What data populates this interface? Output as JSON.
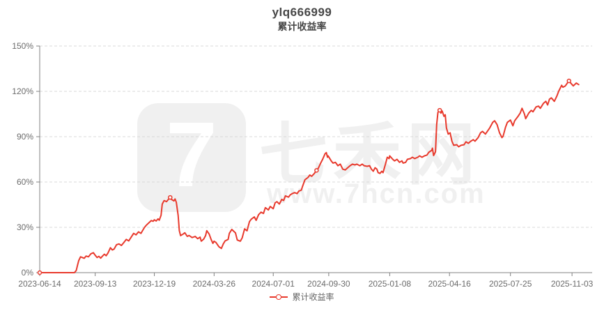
{
  "header": {
    "title": "ylq666999",
    "subtitle": "累计收益率"
  },
  "watermark": {
    "logo_glyph": "7",
    "site_name": "七禾网",
    "site_url": "www.7hcn.com"
  },
  "legend": {
    "items": [
      {
        "label": "累计收益率",
        "marker": "line-with-hollow-circle",
        "color": "#e8392c"
      }
    ]
  },
  "colors": {
    "line": "#e8392c",
    "axis_line": "#808080",
    "grid_line": "#d9d9d9",
    "axis_text": "#6b6b6b",
    "title_text": "#464646",
    "watermark": "#f0f0f0",
    "background": "#ffffff"
  },
  "chart_data": {
    "type": "line",
    "title": "ylq666999",
    "subtitle": "累计收益率",
    "series_name": "累计收益率",
    "legend_position": "bottom-center",
    "grid": "horizontal-dashed",
    "x_axis": {
      "kind": "date",
      "start_date": "2023-06-14",
      "axis_span_days": 906,
      "tick_days": [
        0,
        91,
        188,
        286,
        383,
        474,
        574,
        672,
        772,
        873
      ],
      "tick_labels": [
        "2023-06-14",
        "2023-09-13",
        "2023-12-19",
        "2024-03-26",
        "2024-07-01",
        "2024-09-30",
        "2025-01-08",
        "2025-04-16",
        "2025-07-25",
        "2025-11-03"
      ]
    },
    "y_axis": {
      "unit": "%",
      "min": 0,
      "max": 150,
      "tick_values": [
        0,
        30,
        60,
        90,
        120,
        150
      ],
      "tick_labels": [
        "0%",
        "30%",
        "60%",
        "90%",
        "120%",
        "150%"
      ]
    },
    "marker_days": [
      0,
      214,
      454,
      656,
      868
    ],
    "points": [
      [
        0,
        0
      ],
      [
        12,
        0
      ],
      [
        24,
        0
      ],
      [
        36,
        0
      ],
      [
        48,
        0
      ],
      [
        57,
        0
      ],
      [
        60,
        1.5
      ],
      [
        62,
        5
      ],
      [
        64,
        8
      ],
      [
        67,
        10.5
      ],
      [
        70,
        10
      ],
      [
        73,
        9.5
      ],
      [
        76,
        11
      ],
      [
        80,
        10.5
      ],
      [
        84,
        12.5
      ],
      [
        88,
        13.2
      ],
      [
        91,
        11.5
      ],
      [
        94,
        10
      ],
      [
        97,
        10.8
      ],
      [
        100,
        9.6
      ],
      [
        103,
        11
      ],
      [
        106,
        12.2
      ],
      [
        109,
        11.2
      ],
      [
        112,
        13
      ],
      [
        116,
        16.5
      ],
      [
        119,
        15
      ],
      [
        122,
        15.6
      ],
      [
        126,
        18.5
      ],
      [
        130,
        19
      ],
      [
        134,
        18
      ],
      [
        138,
        20
      ],
      [
        142,
        22
      ],
      [
        146,
        21
      ],
      [
        150,
        23.5
      ],
      [
        154,
        26
      ],
      [
        158,
        25
      ],
      [
        162,
        27
      ],
      [
        166,
        26
      ],
      [
        169,
        28
      ],
      [
        172,
        30
      ],
      [
        175,
        31.5
      ],
      [
        179,
        33
      ],
      [
        183,
        34.5
      ],
      [
        186,
        34
      ],
      [
        188,
        35
      ],
      [
        191,
        34.2
      ],
      [
        194,
        35.6
      ],
      [
        196,
        34.7
      ],
      [
        199,
        38
      ],
      [
        201,
        45.4
      ],
      [
        204,
        47.7
      ],
      [
        208,
        47
      ],
      [
        210,
        48
      ],
      [
        214,
        49.8
      ],
      [
        216,
        48.5
      ],
      [
        220,
        47.5
      ],
      [
        222,
        48.8
      ],
      [
        224,
        46.5
      ],
      [
        227,
        38
      ],
      [
        229,
        27.8
      ],
      [
        231,
        24.5
      ],
      [
        235,
        25.5
      ],
      [
        238,
        26.4
      ],
      [
        242,
        24
      ],
      [
        245,
        24.6
      ],
      [
        250,
        23.2
      ],
      [
        255,
        24
      ],
      [
        259,
        22.5
      ],
      [
        263,
        23.5
      ],
      [
        265,
        20.8
      ],
      [
        269,
        22.2
      ],
      [
        272,
        24.5
      ],
      [
        274,
        27.8
      ],
      [
        278,
        25.5
      ],
      [
        281,
        22
      ],
      [
        284,
        19.4
      ],
      [
        286,
        20.8
      ],
      [
        289,
        20
      ],
      [
        294,
        17.1
      ],
      [
        298,
        16
      ],
      [
        301,
        19
      ],
      [
        304,
        21
      ],
      [
        309,
        22
      ],
      [
        311,
        26
      ],
      [
        315,
        28.6
      ],
      [
        321,
        26.3
      ],
      [
        324,
        21.6
      ],
      [
        329,
        20.8
      ],
      [
        332,
        23
      ],
      [
        336,
        29
      ],
      [
        340,
        27.7
      ],
      [
        344,
        33.8
      ],
      [
        347,
        35.4
      ],
      [
        352,
        36.9
      ],
      [
        355,
        34.6
      ],
      [
        359,
        38.4
      ],
      [
        363,
        40
      ],
      [
        367,
        39.2
      ],
      [
        370,
        43
      ],
      [
        375,
        41.5
      ],
      [
        378,
        43.8
      ],
      [
        383,
        42.3
      ],
      [
        386,
        46.2
      ],
      [
        389,
        47
      ],
      [
        393,
        45.4
      ],
      [
        397,
        48.5
      ],
      [
        400,
        47.7
      ],
      [
        403,
        50.8
      ],
      [
        408,
        50
      ],
      [
        411,
        51.5
      ],
      [
        414,
        52.3
      ],
      [
        418,
        53
      ],
      [
        422,
        52.3
      ],
      [
        425,
        54
      ],
      [
        429,
        54.6
      ],
      [
        431,
        57
      ],
      [
        435,
        61.5
      ],
      [
        440,
        63
      ],
      [
        443,
        64.6
      ],
      [
        446,
        63.8
      ],
      [
        450,
        65.5
      ],
      [
        454,
        67.7
      ],
      [
        457,
        69.2
      ],
      [
        461,
        72.7
      ],
      [
        464,
        75
      ],
      [
        468,
        78.7
      ],
      [
        470,
        79.5
      ],
      [
        472,
        76.4
      ],
      [
        473,
        77.3
      ],
      [
        478,
        74
      ],
      [
        481,
        72.5
      ],
      [
        485,
        73
      ],
      [
        489,
        70.8
      ],
      [
        493,
        71.8
      ],
      [
        497,
        68.5
      ],
      [
        501,
        68
      ],
      [
        505,
        69.4
      ],
      [
        509,
        70.8
      ],
      [
        513,
        71.8
      ],
      [
        517,
        71.3
      ],
      [
        520,
        71.8
      ],
      [
        525,
        70.8
      ],
      [
        529,
        71.8
      ],
      [
        532,
        70.8
      ],
      [
        537,
        70.4
      ],
      [
        541,
        70.8
      ],
      [
        544,
        68.5
      ],
      [
        547,
        67.1
      ],
      [
        550,
        69.4
      ],
      [
        553,
        68.5
      ],
      [
        555,
        66.2
      ],
      [
        558,
        65.7
      ],
      [
        561,
        67.1
      ],
      [
        563,
        66.2
      ],
      [
        567,
        71.8
      ],
      [
        570,
        76.4
      ],
      [
        573,
        75.5
      ],
      [
        574,
        77.3
      ],
      [
        579,
        75
      ],
      [
        582,
        74
      ],
      [
        586,
        75
      ],
      [
        590,
        73
      ],
      [
        594,
        74
      ],
      [
        596,
        72.5
      ],
      [
        600,
        73
      ],
      [
        603,
        75
      ],
      [
        608,
        75.5
      ],
      [
        611,
        76.4
      ],
      [
        615,
        75.5
      ],
      [
        620,
        76.4
      ],
      [
        623,
        77.3
      ],
      [
        627,
        76.4
      ],
      [
        631,
        77.3
      ],
      [
        635,
        77.8
      ],
      [
        638,
        79.6
      ],
      [
        643,
        81
      ],
      [
        644,
        82.4
      ],
      [
        646,
        77.5
      ],
      [
        649,
        80
      ],
      [
        651,
        98
      ],
      [
        653,
        106
      ],
      [
        656,
        107.5
      ],
      [
        658,
        105.6
      ],
      [
        660,
        107
      ],
      [
        663,
        103.5
      ],
      [
        665,
        104.5
      ],
      [
        667,
        95.8
      ],
      [
        670,
        91.7
      ],
      [
        673,
        92.6
      ],
      [
        676,
        87
      ],
      [
        679,
        84.3
      ],
      [
        684,
        84.7
      ],
      [
        687,
        83.3
      ],
      [
        691,
        84.3
      ],
      [
        696,
        84.7
      ],
      [
        699,
        86.6
      ],
      [
        703,
        85.6
      ],
      [
        707,
        87
      ],
      [
        711,
        88
      ],
      [
        714,
        87
      ],
      [
        719,
        89.4
      ],
      [
        723,
        92.6
      ],
      [
        726,
        93.5
      ],
      [
        731,
        91.7
      ],
      [
        734,
        93.5
      ],
      [
        738,
        95.8
      ],
      [
        743,
        99.5
      ],
      [
        746,
        100.5
      ],
      [
        750,
        98
      ],
      [
        754,
        92.6
      ],
      [
        758,
        89.4
      ],
      [
        760,
        90.3
      ],
      [
        764,
        96.3
      ],
      [
        767,
        99.5
      ],
      [
        772,
        101
      ],
      [
        776,
        97.2
      ],
      [
        779,
        100.5
      ],
      [
        784,
        103.2
      ],
      [
        788,
        105.6
      ],
      [
        791,
        108.8
      ],
      [
        795,
        105
      ],
      [
        797,
        101.9
      ],
      [
        802,
        105.6
      ],
      [
        806,
        107.4
      ],
      [
        809,
        106.5
      ],
      [
        814,
        109.7
      ],
      [
        818,
        110.2
      ],
      [
        821,
        108.8
      ],
      [
        826,
        112
      ],
      [
        830,
        113.4
      ],
      [
        833,
        111
      ],
      [
        836,
        114.8
      ],
      [
        839,
        115.7
      ],
      [
        844,
        113.4
      ],
      [
        848,
        116.7
      ],
      [
        851,
        120
      ],
      [
        856,
        124
      ],
      [
        858,
        122.7
      ],
      [
        862,
        123.6
      ],
      [
        866,
        125.9
      ],
      [
        868,
        126.9
      ],
      [
        872,
        125
      ],
      [
        875,
        123.6
      ],
      [
        880,
        125.5
      ],
      [
        884,
        124.5
      ]
    ]
  }
}
